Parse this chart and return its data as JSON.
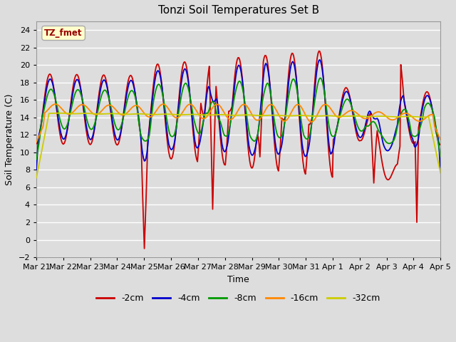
{
  "title": "Tonzi Soil Temperatures Set B",
  "xlabel": "Time",
  "ylabel": "Soil Temperature (C)",
  "ylim": [
    -2,
    25
  ],
  "yticks": [
    -2,
    0,
    2,
    4,
    6,
    8,
    10,
    12,
    14,
    16,
    18,
    20,
    22,
    24
  ],
  "annotation_text": "TZ_fmet",
  "annotation_bg": "#ffffcc",
  "annotation_border": "#aaaaaa",
  "annotation_color": "#990000",
  "line_colors": [
    "#cc0000",
    "#0000cc",
    "#009900",
    "#ff8800",
    "#cccc00"
  ],
  "line_labels": [
    "-2cm",
    "-4cm",
    "-8cm",
    "-16cm",
    "-32cm"
  ],
  "bg_color": "#dddddd",
  "grid_color": "#ffffff",
  "xtick_labels": [
    "Mar 21",
    "Mar 22",
    "Mar 23",
    "Mar 24",
    "Mar 25",
    "Mar 26",
    "Mar 27",
    "Mar 28",
    "Mar 29",
    "Mar 30",
    "Mar 31",
    "Apr 1",
    "Apr 2",
    "Apr 3",
    "Apr 4",
    "Apr 5"
  ],
  "n_points": 480
}
